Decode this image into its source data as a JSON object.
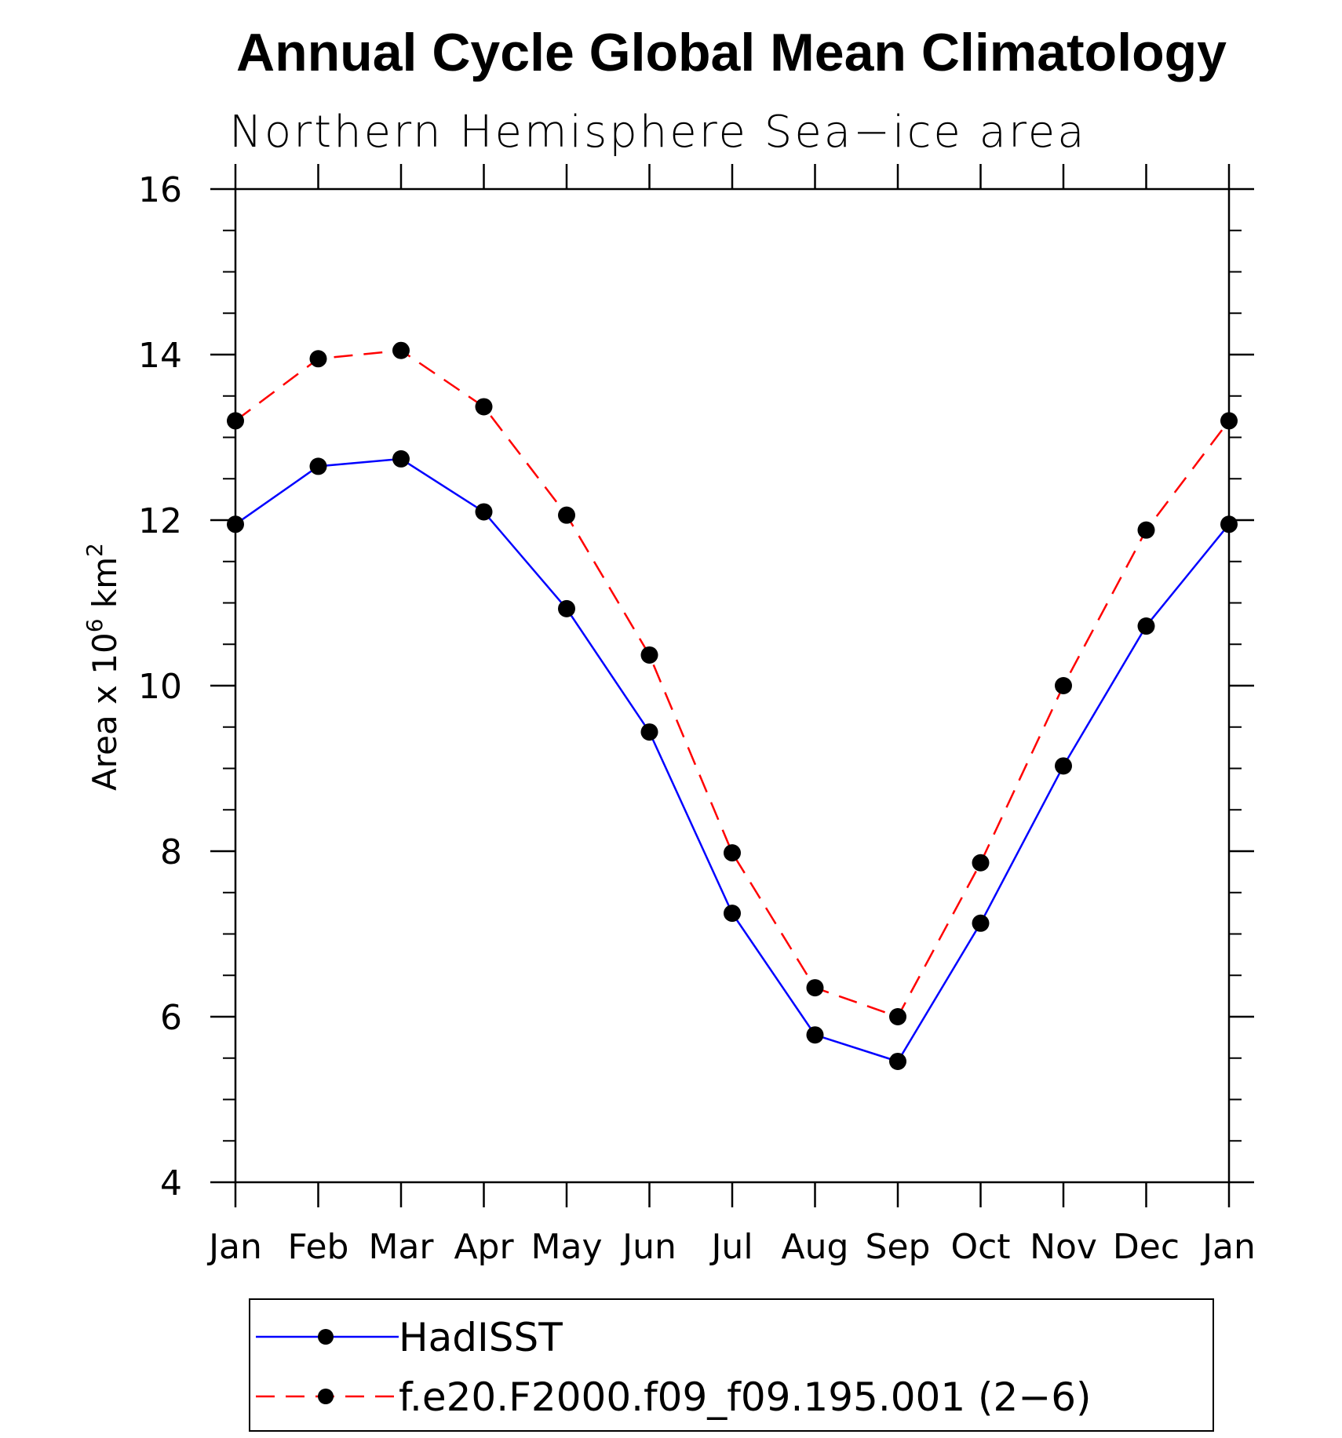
{
  "chart_data": {
    "type": "line",
    "title": "Annual Cycle Global Mean Climatology",
    "subtitle": "Northern Hemisphere Sea−ice area",
    "ylabel": {
      "prefix": "Area x 10",
      "exponent1": "6",
      "middle": " km",
      "exponent2": "2"
    },
    "xlabel": "",
    "categories": [
      "Jan",
      "Feb",
      "Mar",
      "Apr",
      "May",
      "Jun",
      "Jul",
      "Aug",
      "Sep",
      "Oct",
      "Nov",
      "Dec",
      "Jan"
    ],
    "ylim": [
      4,
      16
    ],
    "yticks": [
      4,
      6,
      8,
      10,
      12,
      14,
      16
    ],
    "y_minor_step": 0.5,
    "grid": false,
    "legend_position": "bottom",
    "series": [
      {
        "name": "HadISST",
        "color": "#0000ff",
        "line_style": "solid",
        "marker": "filled-circle",
        "values": [
          11.95,
          12.65,
          12.74,
          12.1,
          10.93,
          9.44,
          7.25,
          5.78,
          5.46,
          7.13,
          9.03,
          10.72,
          11.95
        ]
      },
      {
        "name": "f.e20.F2000.f09_f09.195.001 (2−6)",
        "color": "#ff0000",
        "line_style": "dashed",
        "marker": "filled-circle",
        "values": [
          13.2,
          13.95,
          14.05,
          13.37,
          12.06,
          10.37,
          7.98,
          6.35,
          6.0,
          7.86,
          10.0,
          11.88,
          13.2
        ]
      }
    ]
  }
}
